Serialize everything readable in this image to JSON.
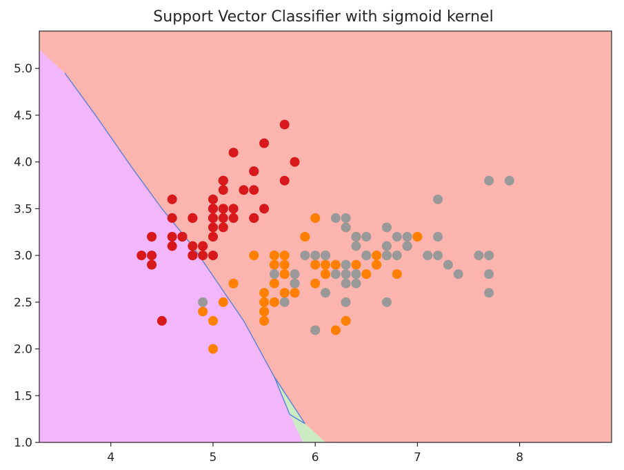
{
  "chart_data": {
    "type": "scatter",
    "title": "Support Vector Classifier with sigmoid kernel",
    "xlabel": "",
    "ylabel": "",
    "xlim": [
      3.3,
      8.9
    ],
    "ylim": [
      1.0,
      5.4
    ],
    "grid": false,
    "x_ticks": [
      4,
      5,
      6,
      7,
      8
    ],
    "y_ticks": [
      1.0,
      1.5,
      2.0,
      2.5,
      3.0,
      3.5,
      4.0,
      4.5,
      5.0
    ],
    "x_tick_labels": [
      "4",
      "5",
      "6",
      "7",
      "8"
    ],
    "y_tick_labels": [
      "1.0",
      "1.5",
      "2.0",
      "2.5",
      "3.0",
      "3.5",
      "4.0",
      "4.5",
      "5.0"
    ],
    "regions": [
      {
        "class": 0,
        "color": "#fbb4ae",
        "polygon": [
          [
            3.3,
            5.2
          ],
          [
            3.3,
            5.4
          ],
          [
            8.9,
            5.4
          ],
          [
            8.9,
            1.0
          ],
          [
            6.1,
            1.0
          ],
          [
            5.9,
            1.2
          ],
          [
            5.6,
            1.7
          ],
          [
            5.3,
            2.3
          ],
          [
            5.05,
            2.7
          ],
          [
            4.8,
            3.1
          ],
          [
            4.5,
            3.5
          ],
          [
            4.2,
            3.95
          ],
          [
            3.85,
            4.5
          ],
          [
            3.55,
            4.95
          ]
        ]
      },
      {
        "class": 1,
        "color": "#ccebc5",
        "polygon": [
          [
            5.6,
            1.7
          ],
          [
            5.9,
            1.2
          ],
          [
            6.1,
            1.0
          ],
          [
            5.88,
            1.0
          ],
          [
            5.75,
            1.3
          ]
        ]
      },
      {
        "class": 2,
        "color": "#f2b6fb",
        "polygon": [
          [
            3.3,
            1.0
          ],
          [
            3.3,
            5.2
          ],
          [
            3.55,
            4.95
          ],
          [
            3.85,
            4.5
          ],
          [
            4.2,
            3.95
          ],
          [
            4.5,
            3.5
          ],
          [
            4.8,
            3.1
          ],
          [
            5.05,
            2.7
          ],
          [
            5.3,
            2.3
          ],
          [
            5.6,
            1.7
          ],
          [
            5.75,
            1.3
          ],
          [
            5.88,
            1.0
          ]
        ]
      }
    ],
    "boundary_color": "#5b7fd6",
    "series": [
      {
        "class": 0,
        "color": "#d7191c",
        "points": [
          [
            5.1,
            3.5
          ],
          [
            4.9,
            3.0
          ],
          [
            4.7,
            3.2
          ],
          [
            4.6,
            3.1
          ],
          [
            5.0,
            3.6
          ],
          [
            5.4,
            3.9
          ],
          [
            4.6,
            3.4
          ],
          [
            5.0,
            3.4
          ],
          [
            4.4,
            2.9
          ],
          [
            4.9,
            3.1
          ],
          [
            5.4,
            3.7
          ],
          [
            4.8,
            3.4
          ],
          [
            4.8,
            3.0
          ],
          [
            4.3,
            3.0
          ],
          [
            5.8,
            4.0
          ],
          [
            5.7,
            4.4
          ],
          [
            5.4,
            3.9
          ],
          [
            5.1,
            3.5
          ],
          [
            5.7,
            3.8
          ],
          [
            5.1,
            3.8
          ],
          [
            5.4,
            3.4
          ],
          [
            5.1,
            3.7
          ],
          [
            4.6,
            3.6
          ],
          [
            5.1,
            3.3
          ],
          [
            4.8,
            3.4
          ],
          [
            5.0,
            3.0
          ],
          [
            5.0,
            3.4
          ],
          [
            5.2,
            3.5
          ],
          [
            5.2,
            3.4
          ],
          [
            4.7,
            3.2
          ],
          [
            4.8,
            3.1
          ],
          [
            5.4,
            3.4
          ],
          [
            5.2,
            4.1
          ],
          [
            5.5,
            4.2
          ],
          [
            4.9,
            3.1
          ],
          [
            5.0,
            3.2
          ],
          [
            5.5,
            3.5
          ],
          [
            4.4,
            3.0
          ],
          [
            5.1,
            3.4
          ],
          [
            5.0,
            3.5
          ],
          [
            4.5,
            2.3
          ],
          [
            4.4,
            3.2
          ],
          [
            5.0,
            3.5
          ],
          [
            5.1,
            3.8
          ],
          [
            4.8,
            3.0
          ],
          [
            5.1,
            3.8
          ],
          [
            4.6,
            3.2
          ],
          [
            5.3,
            3.7
          ],
          [
            5.0,
            3.3
          ]
        ]
      },
      {
        "class": 1,
        "color": "#ff7f00",
        "points": [
          [
            7.0,
            3.2
          ],
          [
            6.4,
            3.2
          ],
          [
            6.9,
            3.1
          ],
          [
            5.5,
            2.3
          ],
          [
            6.5,
            2.8
          ],
          [
            5.7,
            2.8
          ],
          [
            6.3,
            3.3
          ],
          [
            4.9,
            2.4
          ],
          [
            6.6,
            2.9
          ],
          [
            5.2,
            2.7
          ],
          [
            5.0,
            2.0
          ],
          [
            5.9,
            3.0
          ],
          [
            6.0,
            2.2
          ],
          [
            6.1,
            2.9
          ],
          [
            5.6,
            2.9
          ],
          [
            6.7,
            3.1
          ],
          [
            5.6,
            3.0
          ],
          [
            5.8,
            2.7
          ],
          [
            6.2,
            2.2
          ],
          [
            5.6,
            2.5
          ],
          [
            5.9,
            3.2
          ],
          [
            6.1,
            2.8
          ],
          [
            6.3,
            2.5
          ],
          [
            6.1,
            2.8
          ],
          [
            6.4,
            2.9
          ],
          [
            6.6,
            3.0
          ],
          [
            6.8,
            2.8
          ],
          [
            6.7,
            3.0
          ],
          [
            6.0,
            2.9
          ],
          [
            5.7,
            2.6
          ],
          [
            5.5,
            2.4
          ],
          [
            5.5,
            2.4
          ],
          [
            5.8,
            2.7
          ],
          [
            6.0,
            2.7
          ],
          [
            5.4,
            3.0
          ],
          [
            6.0,
            3.4
          ],
          [
            6.7,
            3.1
          ],
          [
            6.3,
            2.3
          ],
          [
            5.6,
            3.0
          ],
          [
            5.5,
            2.5
          ],
          [
            5.5,
            2.6
          ],
          [
            6.1,
            3.0
          ],
          [
            5.8,
            2.6
          ],
          [
            5.0,
            2.3
          ],
          [
            5.6,
            2.7
          ],
          [
            5.7,
            3.0
          ],
          [
            5.7,
            2.9
          ],
          [
            6.2,
            2.9
          ],
          [
            5.1,
            2.5
          ],
          [
            5.7,
            2.8
          ]
        ]
      },
      {
        "class": 2,
        "color": "#999999",
        "points": [
          [
            6.3,
            3.3
          ],
          [
            5.8,
            2.7
          ],
          [
            7.1,
            3.0
          ],
          [
            6.3,
            2.9
          ],
          [
            6.5,
            3.0
          ],
          [
            7.6,
            3.0
          ],
          [
            4.9,
            2.5
          ],
          [
            7.3,
            2.9
          ],
          [
            6.7,
            2.5
          ],
          [
            7.2,
            3.6
          ],
          [
            6.5,
            3.2
          ],
          [
            6.4,
            2.7
          ],
          [
            6.8,
            3.0
          ],
          [
            5.7,
            2.5
          ],
          [
            5.8,
            2.8
          ],
          [
            6.4,
            3.2
          ],
          [
            6.5,
            3.0
          ],
          [
            7.7,
            3.8
          ],
          [
            7.7,
            2.6
          ],
          [
            6.0,
            2.2
          ],
          [
            6.9,
            3.2
          ],
          [
            5.6,
            2.8
          ],
          [
            7.7,
            2.8
          ],
          [
            6.3,
            2.7
          ],
          [
            6.7,
            3.3
          ],
          [
            7.2,
            3.2
          ],
          [
            6.2,
            2.8
          ],
          [
            6.1,
            3.0
          ],
          [
            6.4,
            2.8
          ],
          [
            7.2,
            3.0
          ],
          [
            7.4,
            2.8
          ],
          [
            7.9,
            3.8
          ],
          [
            6.4,
            2.8
          ],
          [
            6.3,
            2.8
          ],
          [
            6.1,
            2.6
          ],
          [
            7.7,
            3.0
          ],
          [
            6.3,
            3.4
          ],
          [
            6.4,
            3.1
          ],
          [
            6.0,
            3.0
          ],
          [
            6.9,
            3.1
          ],
          [
            6.7,
            3.1
          ],
          [
            6.9,
            3.1
          ],
          [
            6.8,
            3.2
          ],
          [
            6.7,
            3.3
          ],
          [
            6.7,
            3.0
          ],
          [
            6.3,
            2.5
          ],
          [
            6.5,
            3.0
          ],
          [
            6.2,
            3.4
          ],
          [
            5.9,
            3.0
          ]
        ]
      }
    ]
  }
}
